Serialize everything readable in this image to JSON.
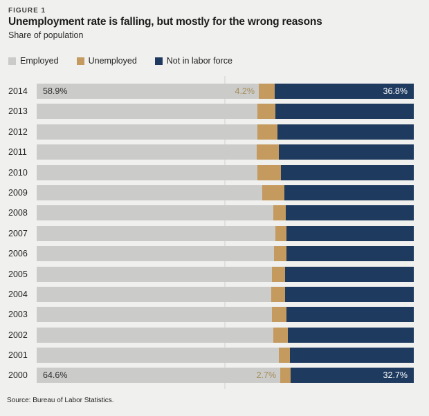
{
  "figure_label": "FIGURE 1",
  "title": "Unemployment rate is falling, but mostly for the wrong reasons",
  "subtitle": "Share of population",
  "source": "Source: Bureau of Labor Statistics.",
  "colors": {
    "background": "#f0f0ee",
    "employed": "#cbcbca",
    "unemployed": "#c49a5e",
    "not_in_labor_force": "#1e3a5f",
    "gridline": "#e0e0de",
    "unemployed_value_label": "#a68e58",
    "employed_value_label": "#2f2f2f",
    "nilf_value_label": "#ffffff"
  },
  "legend": [
    {
      "label": "Employed",
      "color_key": "employed"
    },
    {
      "label": "Unemployed",
      "color_key": "unemployed"
    },
    {
      "label": "Not in labor force",
      "color_key": "not_in_labor_force"
    }
  ],
  "chart_data": {
    "type": "bar",
    "stacked": true,
    "orientation": "horizontal",
    "unit": "percent of population",
    "title": "Unemployment rate is falling, but mostly for the wrong reasons",
    "subtitle": "Share of population",
    "categories": [
      "2014",
      "2013",
      "2012",
      "2011",
      "2010",
      "2009",
      "2008",
      "2007",
      "2006",
      "2005",
      "2004",
      "2003",
      "2002",
      "2001",
      "2000"
    ],
    "series": [
      {
        "name": "Employed",
        "values": [
          58.9,
          58.5,
          58.5,
          58.4,
          58.5,
          59.9,
          62.7,
          63.3,
          63.0,
          62.4,
          62.2,
          62.4,
          62.8,
          64.3,
          64.6
        ]
      },
      {
        "name": "Unemployed",
        "values": [
          4.2,
          4.8,
          5.3,
          5.8,
          6.3,
          5.7,
          3.4,
          2.9,
          3.2,
          3.5,
          3.7,
          3.9,
          3.8,
          2.9,
          2.7
        ]
      },
      {
        "name": "Not in labor force",
        "values": [
          36.8,
          36.7,
          36.2,
          35.8,
          35.2,
          34.4,
          33.9,
          33.8,
          33.8,
          34.1,
          34.1,
          33.7,
          33.4,
          32.8,
          32.7
        ]
      }
    ],
    "data_labels": {
      "2014": {
        "employed": "58.9%",
        "unemployed": "4.2%",
        "not_in_labor_force": "36.8%"
      },
      "2000": {
        "employed": "64.6%",
        "unemployed": "2.7%",
        "not_in_labor_force": "32.7%"
      }
    },
    "x_range": [
      0,
      100
    ],
    "gridline_at": 50,
    "legend_position": "top-left"
  }
}
